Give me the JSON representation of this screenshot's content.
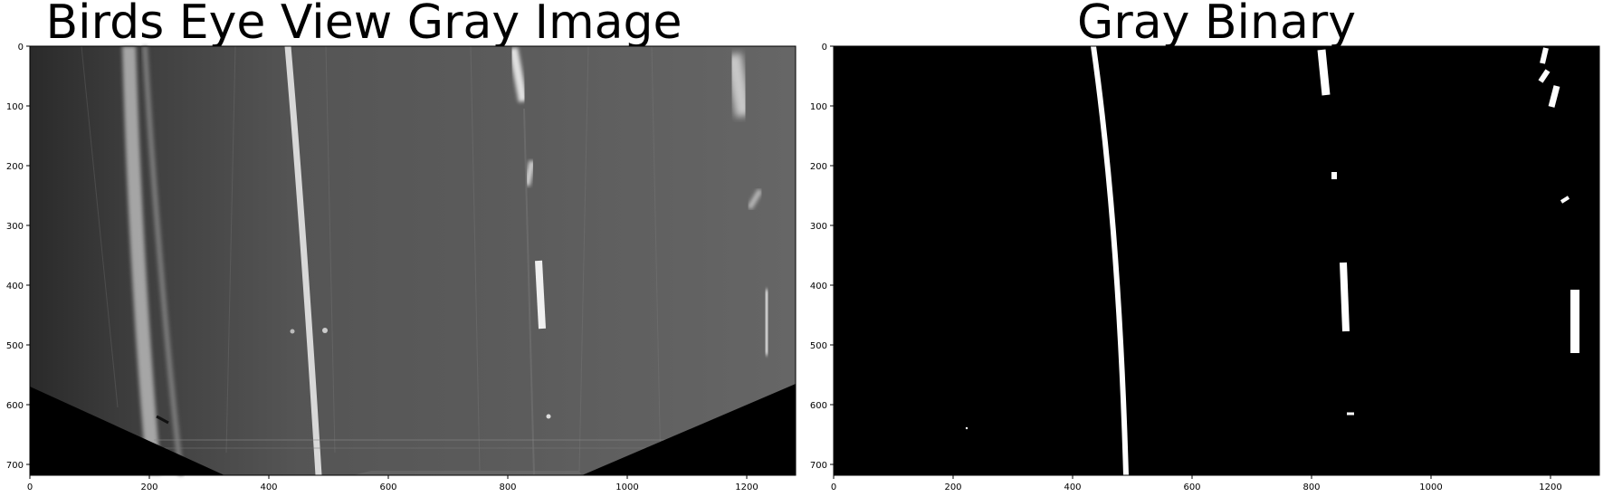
{
  "panels": [
    {
      "title": "Birds Eye View Gray Image",
      "image_type": "grayscale birds-eye road view with lane lines",
      "x_ticks": [
        "0",
        "200",
        "400",
        "600",
        "800",
        "1000",
        "1200"
      ],
      "y_ticks": [
        "0",
        "100",
        "200",
        "300",
        "400",
        "500",
        "600",
        "700"
      ]
    },
    {
      "title": "Gray Binary",
      "image_type": "binary lane mask (white on black)",
      "x_ticks": [
        "0",
        "200",
        "400",
        "600",
        "800",
        "1000",
        "1200"
      ],
      "y_ticks": [
        "0",
        "100",
        "200",
        "300",
        "400",
        "500",
        "600",
        "700"
      ]
    }
  ],
  "colors": {
    "background": "#ffffff",
    "road_gray": "#5a5a5a",
    "mask_black": "#000000",
    "lane_white": "#ffffff",
    "axis": "#000000"
  }
}
